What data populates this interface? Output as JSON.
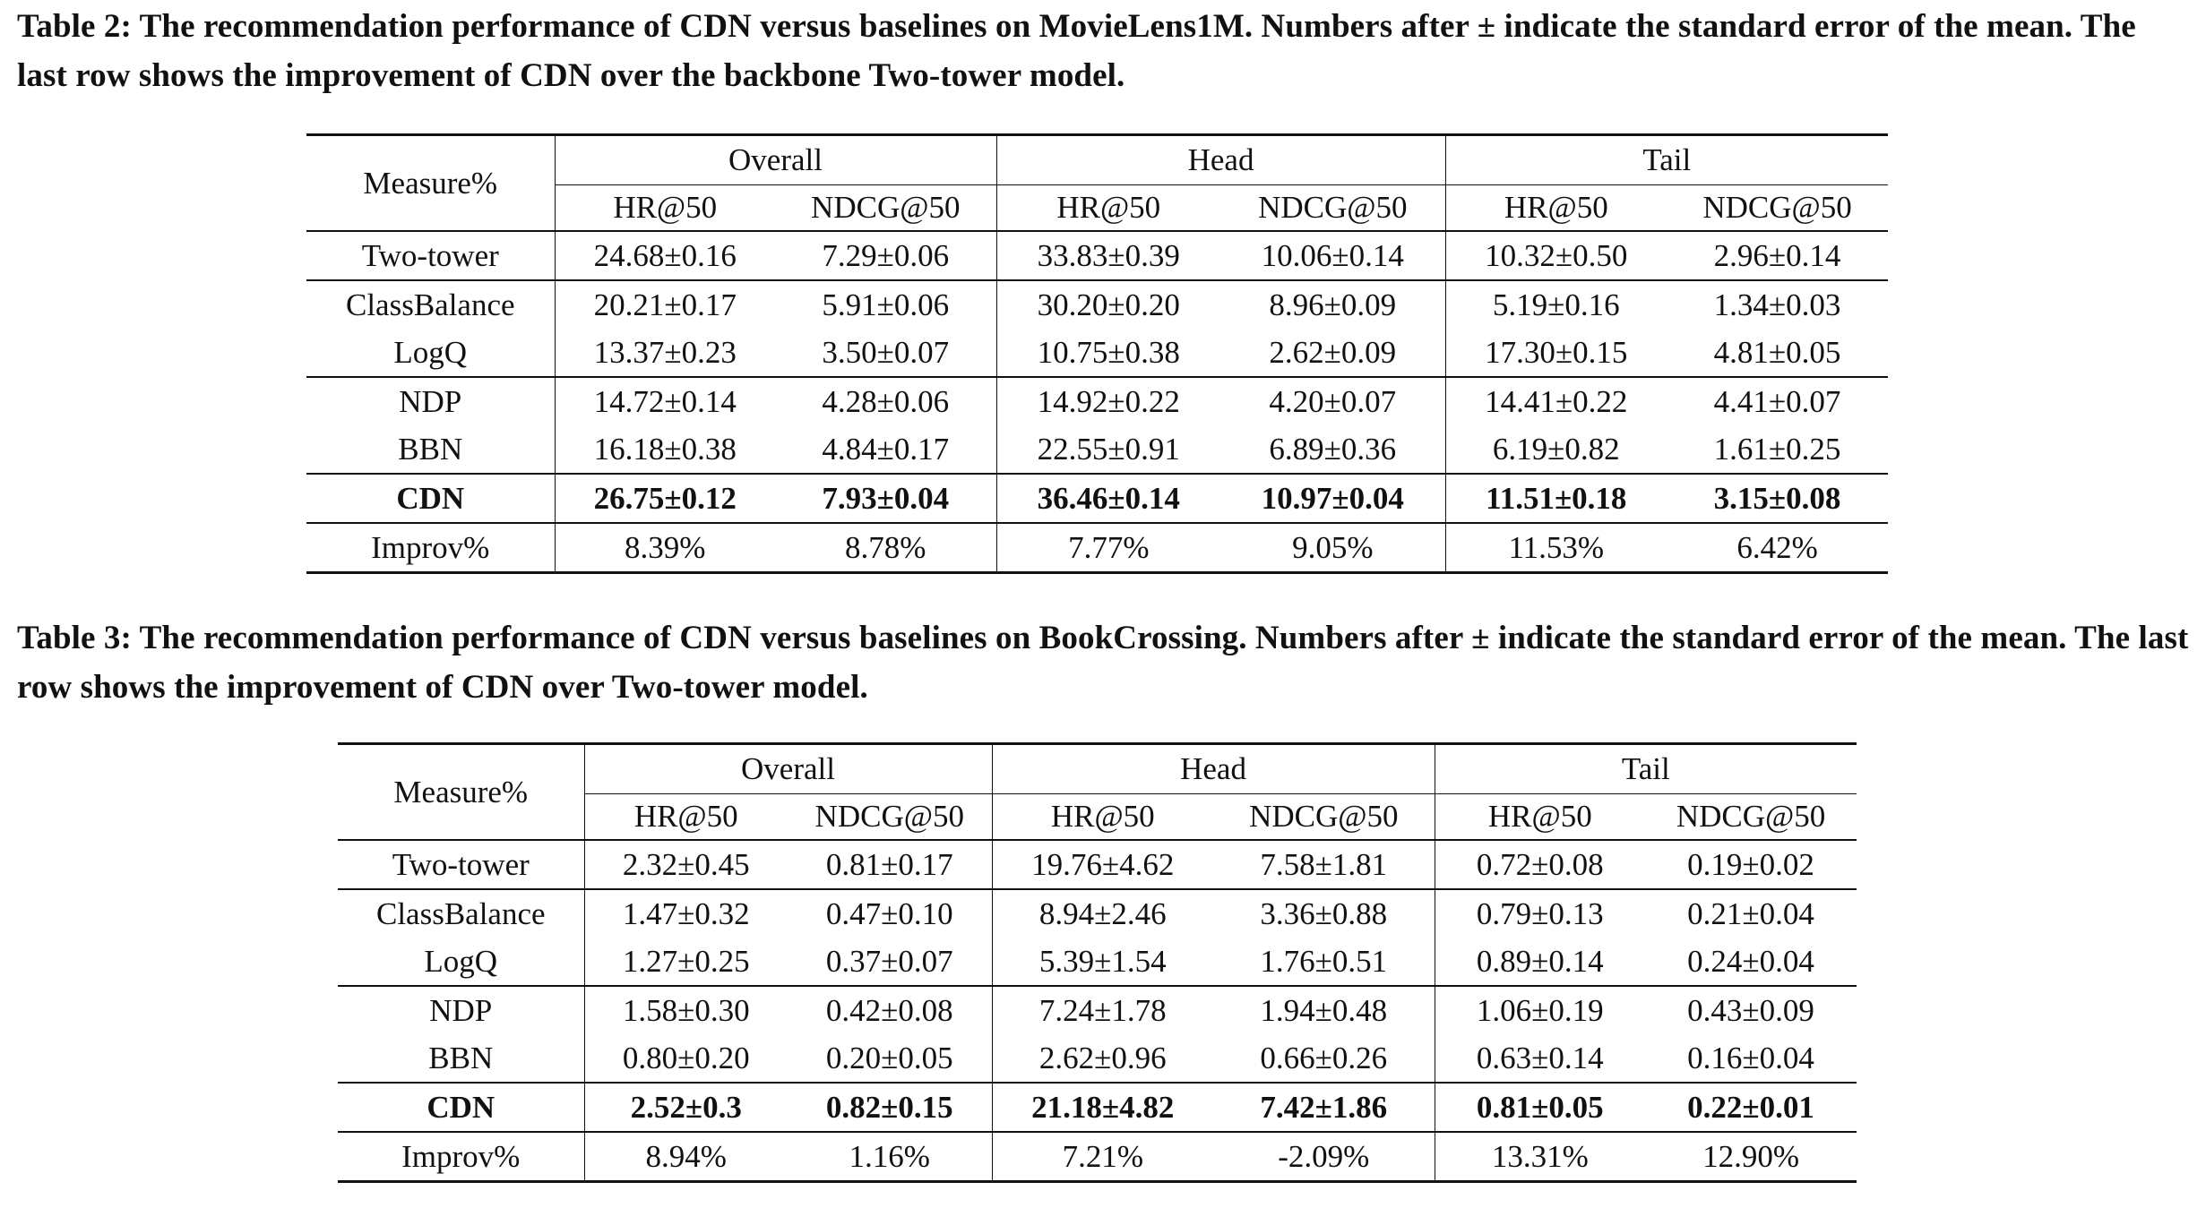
{
  "tables": [
    {
      "caption": "Table 2: The recommendation performance of CDN versus baselines on MovieLens1M. Numbers after ± indicate the standard error of the mean. The last row shows the improvement of CDN over the backbone Two-tower model.",
      "corner": "Measure%",
      "groups": [
        "Overall",
        "Head",
        "Tail"
      ],
      "metrics": [
        "HR@50",
        "NDCG@50",
        "HR@50",
        "NDCG@50",
        "HR@50",
        "NDCG@50"
      ],
      "rows": [
        {
          "method": "Two-tower",
          "values": [
            "24.68±0.16",
            "7.29±0.06",
            "33.83±0.39",
            "10.06±0.14",
            "10.32±0.50",
            "2.96±0.14"
          ]
        },
        {
          "method": "ClassBalance",
          "values": [
            "20.21±0.17",
            "5.91±0.06",
            "30.20±0.20",
            "8.96±0.09",
            "5.19±0.16",
            "1.34±0.03"
          ]
        },
        {
          "method": "LogQ",
          "values": [
            "13.37±0.23",
            "3.50±0.07",
            "10.75±0.38",
            "2.62±0.09",
            "17.30±0.15",
            "4.81±0.05"
          ]
        },
        {
          "method": "NDP",
          "values": [
            "14.72±0.14",
            "4.28±0.06",
            "14.92±0.22",
            "4.20±0.07",
            "14.41±0.22",
            "4.41±0.07"
          ]
        },
        {
          "method": "BBN",
          "values": [
            "16.18±0.38",
            "4.84±0.17",
            "22.55±0.91",
            "6.89±0.36",
            "6.19±0.82",
            "1.61±0.25"
          ]
        },
        {
          "method": "CDN",
          "bold": true,
          "values": [
            "26.75±0.12",
            "7.93±0.04",
            "36.46±0.14",
            "10.97±0.04",
            "11.51±0.18",
            "3.15±0.08"
          ]
        },
        {
          "method": "Improv%",
          "values": [
            "8.39%",
            "8.78%",
            "7.77%",
            "9.05%",
            "11.53%",
            "6.42%"
          ]
        }
      ]
    },
    {
      "caption": "Table 3: The recommendation performance of CDN versus baselines on BookCrossing. Numbers after ± indicate the standard error of the mean. The last row shows the improvement of CDN over Two-tower model.",
      "corner": "Measure%",
      "groups": [
        "Overall",
        "Head",
        "Tail"
      ],
      "metrics": [
        "HR@50",
        "NDCG@50",
        "HR@50",
        "NDCG@50",
        "HR@50",
        "NDCG@50"
      ],
      "rows": [
        {
          "method": "Two-tower",
          "values": [
            "2.32±0.45",
            "0.81±0.17",
            "19.76±4.62",
            "7.58±1.81",
            "0.72±0.08",
            "0.19±0.02"
          ]
        },
        {
          "method": "ClassBalance",
          "values": [
            "1.47±0.32",
            "0.47±0.10",
            "8.94±2.46",
            "3.36±0.88",
            "0.79±0.13",
            "0.21±0.04"
          ]
        },
        {
          "method": "LogQ",
          "values": [
            "1.27±0.25",
            "0.37±0.07",
            "5.39±1.54",
            "1.76±0.51",
            "0.89±0.14",
            "0.24±0.04"
          ]
        },
        {
          "method": "NDP",
          "values": [
            "1.58±0.30",
            "0.42±0.08",
            "7.24±1.78",
            "1.94±0.48",
            "1.06±0.19",
            "0.43±0.09"
          ]
        },
        {
          "method": "BBN",
          "values": [
            "0.80±0.20",
            "0.20±0.05",
            "2.62±0.96",
            "0.66±0.26",
            "0.63±0.14",
            "0.16±0.04"
          ]
        },
        {
          "method": "CDN",
          "bold": true,
          "values": [
            "2.52±0.3",
            "0.82±0.15",
            "21.18±4.82",
            "7.42±1.86",
            "0.81±0.05",
            "0.22±0.01"
          ]
        },
        {
          "method": "Improv%",
          "values": [
            "8.94%",
            "1.16%",
            "7.21%",
            "-2.09%",
            "13.31%",
            "12.90%"
          ]
        }
      ]
    }
  ]
}
